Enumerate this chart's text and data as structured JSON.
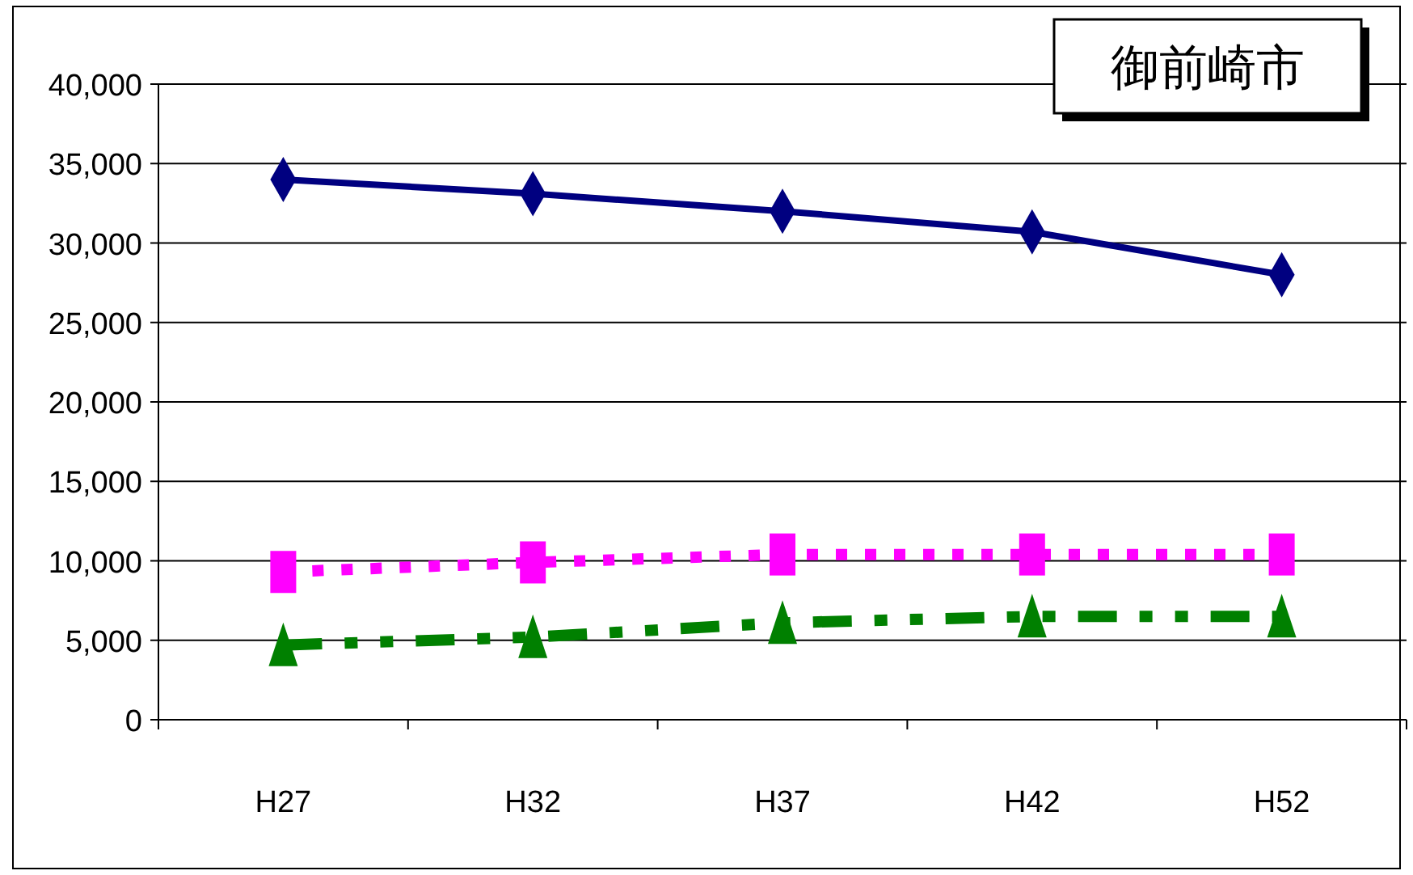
{
  "chart_data": {
    "type": "line",
    "title": "御前崎市",
    "categories": [
      "H27",
      "H32",
      "H37",
      "H42",
      "H52"
    ],
    "series": [
      {
        "color": "#000080",
        "marker": "diamond",
        "line_style": "solid",
        "values": [
          34000,
          33100,
          32000,
          30700,
          28000
        ]
      },
      {
        "color": "#ff00ff",
        "marker": "square",
        "line_style": "dotted",
        "values": [
          9300,
          9900,
          10400,
          10400,
          10400
        ]
      },
      {
        "color": "#008000",
        "marker": "triangle",
        "line_style": "dashed",
        "values": [
          4700,
          5200,
          6100,
          6500,
          6500
        ]
      }
    ],
    "ylim": [
      0,
      40000
    ],
    "yticks": [
      {
        "value": 0,
        "label": "0"
      },
      {
        "value": 5000,
        "label": "5,000"
      },
      {
        "value": 10000,
        "label": "10,000"
      },
      {
        "value": 15000,
        "label": "15,000"
      },
      {
        "value": 20000,
        "label": "20,000"
      },
      {
        "value": 25000,
        "label": "25,000"
      },
      {
        "value": 30000,
        "label": "30,000"
      },
      {
        "value": 35000,
        "label": "35,000"
      },
      {
        "value": 40000,
        "label": "40,000"
      }
    ],
    "grid": "y"
  }
}
